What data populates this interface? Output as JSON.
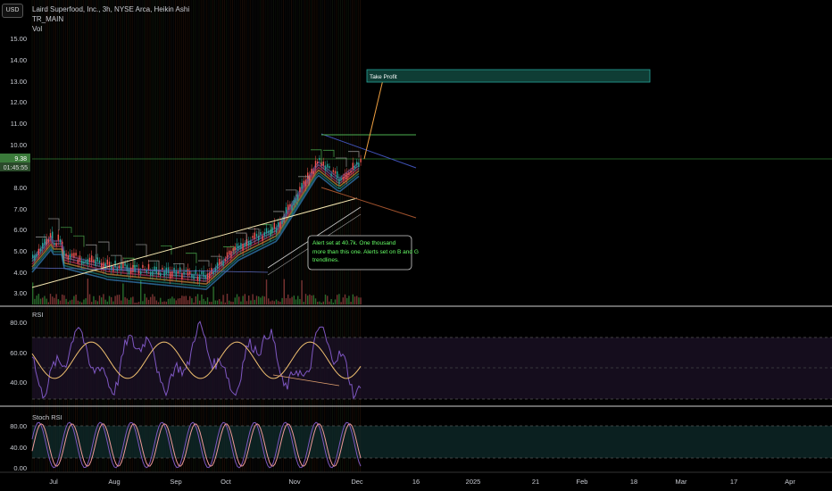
{
  "header": {
    "currency_button": "USD",
    "symbol_line": "Laird Superfood, Inc., 3h, NYSE Arca, Heikin Ashi",
    "indicator_1": "TR_MAIN",
    "indicator_2": "Vol"
  },
  "price_axis": {
    "ticks": [
      "15.00",
      "14.00",
      "13.00",
      "12.00",
      "11.00",
      "10.00",
      "8.00",
      "7.00",
      "6.00",
      "5.00",
      "4.00",
      "3.00"
    ],
    "last_price": "9.38",
    "countdown": "01:45:55",
    "last_price_color": "#3a7a3a"
  },
  "annotations": {
    "take_profit": "Take Profit",
    "alert_note": "Alert set at 40.7k. One thousand more than this one. Alerts set on B and G trendlines."
  },
  "rsi_pane": {
    "title": "RSI",
    "ticks": [
      "80.00",
      "60.00",
      "40.00"
    ]
  },
  "stoch_pane": {
    "title": "Stoch RSI",
    "ticks": [
      "80.00",
      "40.00",
      "0.00"
    ]
  },
  "time_axis": {
    "labels": [
      "Jul",
      "Aug",
      "Sep",
      "Oct",
      "Nov",
      "Dec",
      "16",
      "2025",
      "21",
      "Feb",
      "18",
      "Mar",
      "17",
      "Apr"
    ]
  },
  "colors": {
    "background": "#000000",
    "take_profit_fill": "#0f3d35",
    "take_profit_border": "#26a69a",
    "rsi_line": "#7e57c2",
    "rsi_signal": "#f0c070",
    "stoch_k": "#7e57c2",
    "stoch_d": "#ef9a9a",
    "trendline_blue": "#3f51b5",
    "trendline_orange": "#f0a040"
  }
}
